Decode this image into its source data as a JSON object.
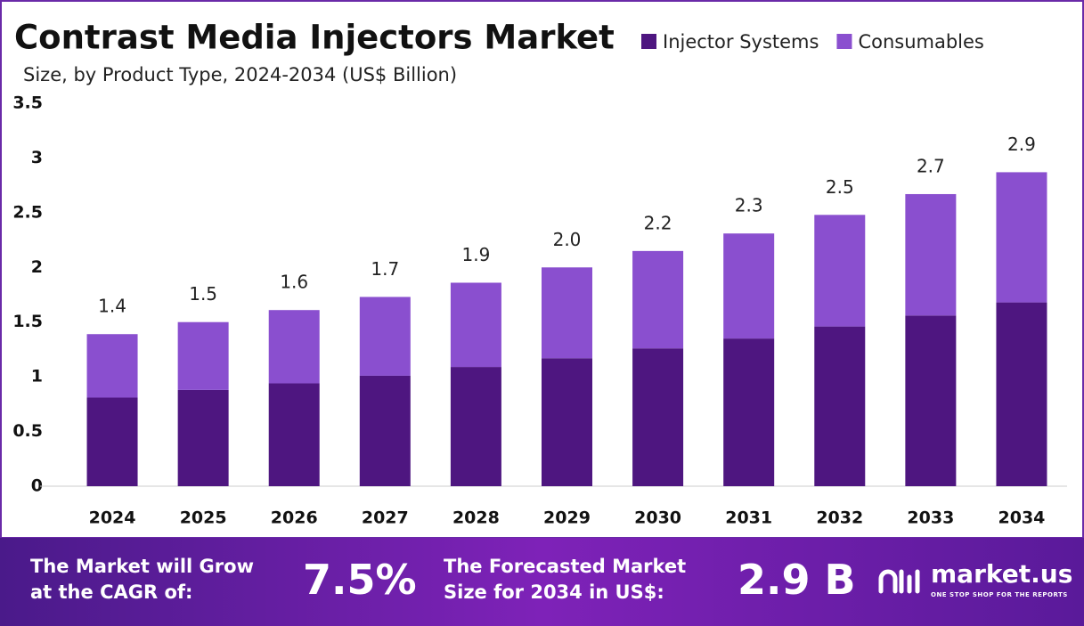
{
  "chart_data": {
    "type": "stacked_bar",
    "title": "Contrast Media Injectors Market",
    "subtitle": "Size, by Product Type, 2024-2034 (US$ Billion)",
    "categories": [
      "2024",
      "2025",
      "2026",
      "2027",
      "2028",
      "2029",
      "2030",
      "2031",
      "2032",
      "2033",
      "2034"
    ],
    "series": [
      {
        "name": "Injector Systems",
        "color": "#4e1680",
        "values": [
          0.81,
          0.88,
          0.94,
          1.01,
          1.09,
          1.17,
          1.26,
          1.35,
          1.46,
          1.56,
          1.68
        ]
      },
      {
        "name": "Consumables",
        "color": "#8a4fcf",
        "values": [
          0.58,
          0.62,
          0.67,
          0.72,
          0.77,
          0.83,
          0.89,
          0.96,
          1.02,
          1.11,
          1.19
        ]
      }
    ],
    "total_labels": [
      "1.4",
      "1.5",
      "1.6",
      "1.7",
      "1.9",
      "2.0",
      "2.2",
      "2.3",
      "2.5",
      "2.7",
      "2.9"
    ],
    "ylim": [
      0,
      3.5
    ],
    "yticks": [
      0,
      0.5,
      1,
      1.5,
      2,
      2.5,
      3,
      3.5
    ],
    "legend": "top-right"
  },
  "footer": {
    "cagr_text": [
      "The Market will Grow",
      "at the CAGR of:"
    ],
    "cagr_value": "7.5%",
    "forecast_text": [
      "The Forecasted Market",
      "Size for 2034 in US$:"
    ],
    "forecast_value": "2.9 B",
    "brand": "market.us",
    "tagline": "ONE STOP SHOP FOR THE REPORTS"
  }
}
